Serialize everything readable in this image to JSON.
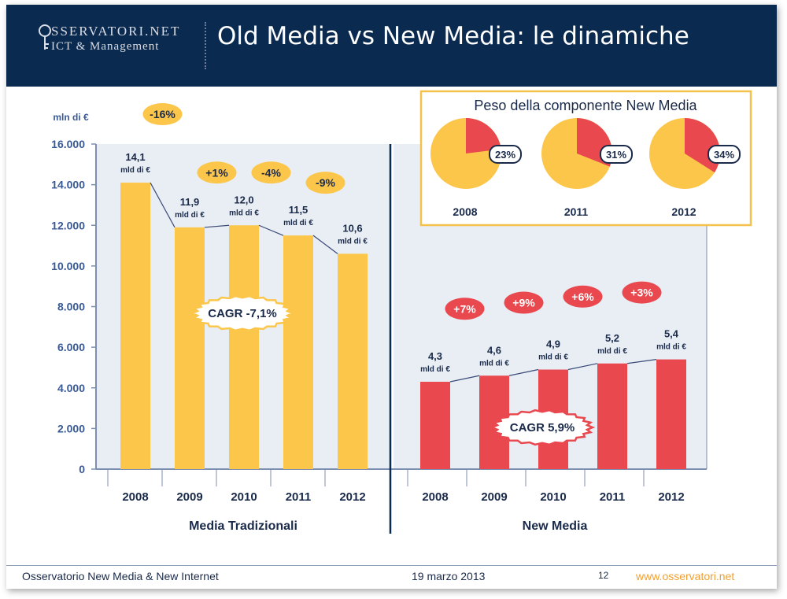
{
  "header": {
    "logo_line1": "SSERVATORI.NET",
    "logo_line2": "ICT & Management",
    "title": "Old Media vs New Media: le dinamiche"
  },
  "footer": {
    "left": "Osservatorio New Media & New Internet",
    "date": "19 marzo 2013",
    "page": "12",
    "site": "www.osservatori.net"
  },
  "chart_data": [
    {
      "type": "bar",
      "ylabel": "mln di €",
      "ylim": [
        0,
        16000
      ],
      "yticks": [
        "0",
        "2.000",
        "4.000",
        "6.000",
        "8.000",
        "10.000",
        "12.000",
        "14.000",
        "16.000"
      ],
      "ytick_values": [
        0,
        2000,
        4000,
        6000,
        8000,
        10000,
        12000,
        14000,
        16000
      ],
      "panels": [
        {
          "name": "Media Tradizionali",
          "color": "#fcc64a",
          "categories": [
            "2008",
            "2009",
            "2010",
            "2011",
            "2012"
          ],
          "values": [
            14100,
            11900,
            12000,
            11500,
            10600
          ],
          "value_labels": [
            "14,1",
            "11,9",
            "12,0",
            "11,5",
            "10,6"
          ],
          "unit_label": "mld di €",
          "changes": [
            "-16%",
            "+1%",
            "-4%",
            "-9%"
          ],
          "change_color": "#fcc64a",
          "change_text_color": "#1a2a4a",
          "cagr": "CAGR -7,1%"
        },
        {
          "name": "New Media",
          "color": "#e8484e",
          "categories": [
            "2008",
            "2009",
            "2010",
            "2011",
            "2012"
          ],
          "values": [
            4300,
            4600,
            4900,
            5200,
            5400
          ],
          "value_labels": [
            "4,3",
            "4,6",
            "4,9",
            "5,2",
            "5,4"
          ],
          "unit_label": "mld di €",
          "changes": [
            "+7%",
            "+9%",
            "+6%",
            "+3%"
          ],
          "change_color": "#e8484e",
          "change_text_color": "#ffffff",
          "cagr": "CAGR 5,9%"
        }
      ]
    },
    {
      "type": "pie",
      "title": "Peso della componente New Media",
      "pies": [
        {
          "year": "2008",
          "value": 23,
          "label": "23%"
        },
        {
          "year": "2011",
          "value": 31,
          "label": "31%"
        },
        {
          "year": "2012",
          "value": 34,
          "label": "34%"
        }
      ],
      "colors": {
        "new_media": "#e8484e",
        "old_media": "#fcc64a"
      }
    }
  ]
}
